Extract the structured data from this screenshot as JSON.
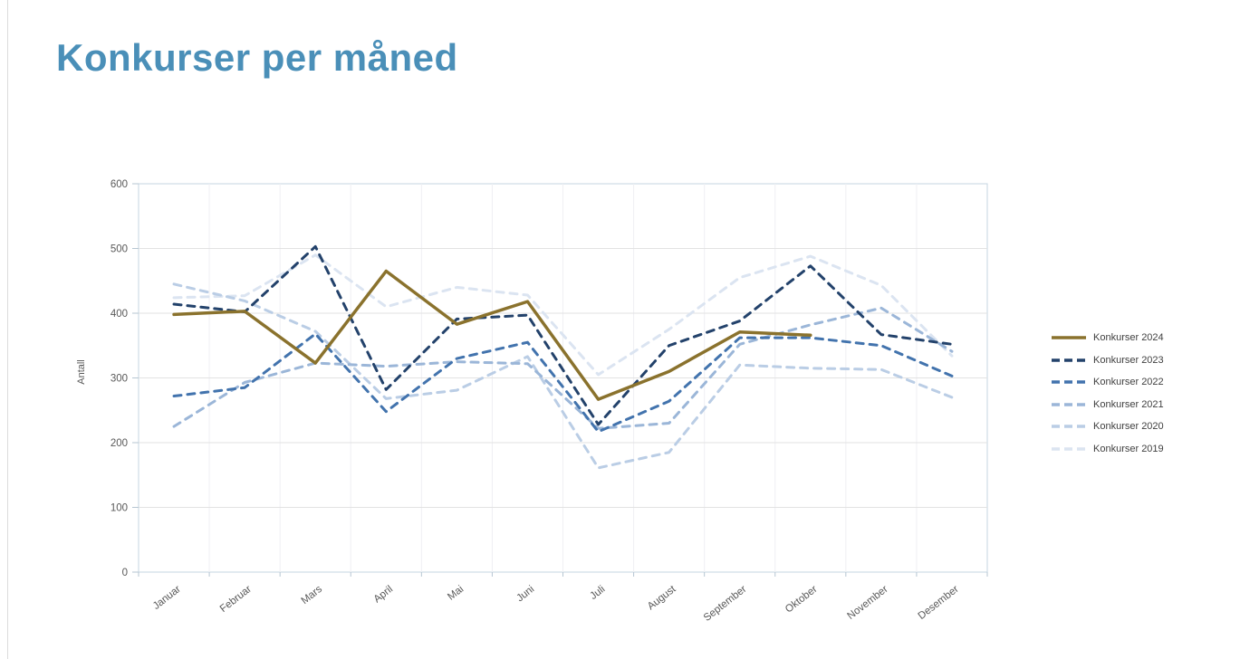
{
  "page": {
    "title": "Konkurser per måned"
  },
  "chart_data": {
    "type": "line",
    "title": "Konkurser per måned",
    "xlabel": "",
    "ylabel": "Antall",
    "ylim": [
      0,
      600
    ],
    "yticks": [
      0,
      100,
      200,
      300,
      400,
      500,
      600
    ],
    "grid": true,
    "legend_position": "right",
    "categories": [
      "Januar",
      "Februar",
      "Mars",
      "April",
      "Mai",
      "Juni",
      "Juli",
      "August",
      "September",
      "Oktober",
      "November",
      "Desember"
    ],
    "series": [
      {
        "name": "Konkurser 2024",
        "color": "#8a722d",
        "dash": "solid",
        "values": [
          398,
          403,
          323,
          465,
          383,
          418,
          267,
          310,
          371,
          366,
          null,
          null
        ]
      },
      {
        "name": "Konkurser 2023",
        "color": "#23426b",
        "dash": "dashed",
        "values": [
          414,
          402,
          503,
          282,
          391,
          397,
          228,
          350,
          388,
          473,
          367,
          352
        ]
      },
      {
        "name": "Konkurser 2022",
        "color": "#4273ad",
        "dash": "dashed",
        "values": [
          272,
          285,
          368,
          248,
          330,
          355,
          217,
          264,
          362,
          362,
          350,
          303
        ]
      },
      {
        "name": "Konkurser 2021",
        "color": "#9bb6d8",
        "dash": "dashed",
        "values": [
          225,
          293,
          323,
          318,
          325,
          322,
          222,
          230,
          352,
          382,
          408,
          341
        ]
      },
      {
        "name": "Konkurser 2020",
        "color": "#bacde5",
        "dash": "dashed",
        "values": [
          445,
          419,
          372,
          268,
          281,
          333,
          161,
          185,
          320,
          315,
          313,
          270
        ]
      },
      {
        "name": "Konkurser 2019",
        "color": "#dbe4f1",
        "dash": "dashed",
        "values": [
          424,
          427,
          490,
          410,
          440,
          428,
          305,
          375,
          455,
          488,
          443,
          334
        ]
      }
    ],
    "colors": {
      "title": "#4a8fb8",
      "axis_text": "#595959",
      "plot_border": "#c5d5e2",
      "gridline": "#e2e2e2",
      "minor_gridline": "#efeff3",
      "tick": "#b6c6d2"
    }
  }
}
